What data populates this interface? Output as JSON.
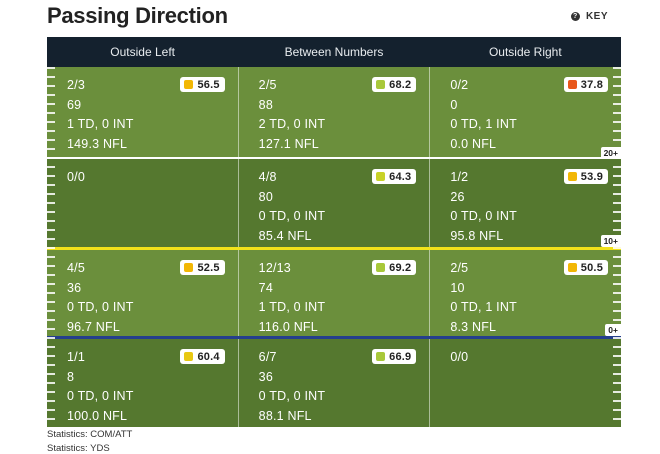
{
  "title": "Passing Direction",
  "key_label": "KEY",
  "columns": [
    "Outside Left",
    "Between Numbers",
    "Outside Right"
  ],
  "rows": [
    {
      "marker": "20+",
      "cells": [
        {
          "lines": [
            "2/3",
            "69",
            "1 TD, 0 INT",
            "149.3 NFL"
          ],
          "grade": "56.5",
          "color": "#f2b705"
        },
        {
          "lines": [
            "2/5",
            "88",
            "2 TD, 0 INT",
            "127.1 NFL"
          ],
          "grade": "68.2",
          "color": "#a8c83a"
        },
        {
          "lines": [
            "0/2",
            "0",
            "0 TD, 1 INT",
            "0.0 NFL"
          ],
          "grade": "37.8",
          "color": "#e8571b"
        }
      ]
    },
    {
      "marker": "10+",
      "cells": [
        {
          "lines": [
            "0/0",
            "",
            "",
            ""
          ],
          "grade": "",
          "color": ""
        },
        {
          "lines": [
            "4/8",
            "80",
            "0 TD, 0 INT",
            "85.4 NFL"
          ],
          "grade": "64.3",
          "color": "#c8d228"
        },
        {
          "lines": [
            "1/2",
            "26",
            "0 TD, 0 INT",
            "95.8 NFL"
          ],
          "grade": "53.9",
          "color": "#f2b705"
        }
      ]
    },
    {
      "marker": "0+",
      "cells": [
        {
          "lines": [
            "4/5",
            "36",
            "0 TD, 0 INT",
            "96.7 NFL"
          ],
          "grade": "52.5",
          "color": "#f2b705"
        },
        {
          "lines": [
            "12/13",
            "74",
            "1 TD, 0 INT",
            "116.0 NFL"
          ],
          "grade": "69.2",
          "color": "#a8c83a"
        },
        {
          "lines": [
            "2/5",
            "10",
            "0 TD, 1 INT",
            "8.3 NFL"
          ],
          "grade": "50.5",
          "color": "#f2b705"
        }
      ]
    },
    {
      "marker": "",
      "cells": [
        {
          "lines": [
            "1/1",
            "8",
            "0 TD, 0 INT",
            "100.0 NFL"
          ],
          "grade": "60.4",
          "color": "#e8c813"
        },
        {
          "lines": [
            "6/7",
            "36",
            "0 TD, 0 INT",
            "88.1 NFL"
          ],
          "grade": "66.9",
          "color": "#a8c83a"
        },
        {
          "lines": [
            "0/0",
            "",
            "",
            ""
          ],
          "grade": "",
          "color": ""
        }
      ]
    }
  ],
  "legend": [
    "Statistics: COM/ATT",
    "Statistics: YDS"
  ]
}
